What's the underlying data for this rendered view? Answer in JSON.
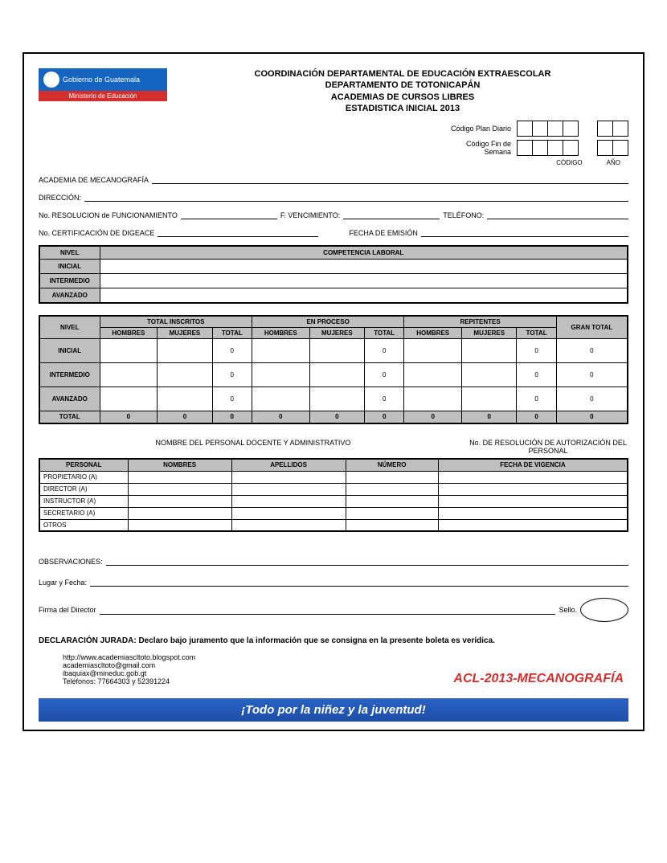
{
  "logo": {
    "org": "Gobierno de Guatemala",
    "ministry": "Ministerio de Educación"
  },
  "title": {
    "l1": "COORDINACIÓN DEPARTAMENTAL DE EDUCACIÓN EXTRAESCOLAR",
    "l2": "DEPARTAMENTO DE TOTONICAPÁN",
    "l3": "ACADEMIAS DE CURSOS LIBRES",
    "l4": "ESTADISTICA INICIAL  2013"
  },
  "codes": {
    "diario_label": "Código Plan Diario",
    "finsemana_label": "Código Fin de Semana",
    "codigo_sub": "CÓDIGO",
    "ano_sub": "AÑO"
  },
  "fields": {
    "academia": "ACADEMIA DE MECANOGRAFÍA",
    "direccion": "DIRECCIÓN:",
    "resolucion": "No. RESOLUCION de FUNCIONAMIENTO",
    "vencimiento": "F. VENCIMIENTO:",
    "telefono": "TELÉFONO:",
    "cert": "No. CERTIFICACIÓN DE DIGEACE",
    "emision": "FECHA DE EMISIÓN"
  },
  "comp": {
    "nivel": "NIVEL",
    "header": "COMPETENCIA LABORAL",
    "levels": [
      "INICIAL",
      "INTERMEDIO",
      "AVANZADO"
    ]
  },
  "stats": {
    "nivel": "NIVEL",
    "groups": [
      "TOTAL INSCRITOS",
      "EN PROCESO",
      "REPITENTES"
    ],
    "gran": "GRAN TOTAL",
    "cols": [
      "HOMBRES",
      "MUJERES",
      "TOTAL"
    ],
    "levels": [
      "INICIAL",
      "INTERMEDIO",
      "AVANZADO"
    ],
    "rows": [
      [
        "",
        "",
        "0",
        "",
        "",
        "0",
        "",
        "",
        "0",
        "0"
      ],
      [
        "",
        "",
        "0",
        "",
        "",
        "0",
        "",
        "",
        "0",
        "0"
      ],
      [
        "",
        "",
        "0",
        "",
        "",
        "0",
        "",
        "",
        "0",
        "0"
      ]
    ],
    "total_label": "TOTAL",
    "totals": [
      "0",
      "0",
      "0",
      "0",
      "0",
      "0",
      "0",
      "0",
      "0",
      "0"
    ]
  },
  "personal": {
    "hdr_left": "NOMBRE DEL PERSONAL DOCENTE Y ADMINISTRATIVO",
    "hdr_right": "No.   DE  RESOLUCIÓN DE AUTORIZACIÓN DEL PERSONAL",
    "cols": [
      "PERSONAL",
      "NOMBRES",
      "APELLIDOS",
      "NÚMERO",
      "FECHA DE VIGENCIA"
    ],
    "roles": [
      "PROPIETARIO (A)",
      "DIRECTOR (A)",
      "INSTRUCTOR (A)",
      "SECRETARIO (A)",
      "OTROS"
    ]
  },
  "obs": {
    "observaciones": "OBSERVACIONES:",
    "lugar": "Lugar y Fecha:",
    "firma": "Firma del Director",
    "sello": "Sello."
  },
  "decl": {
    "label": "DECLARACIÓN JURADA:",
    "text": " Declaro bajo juramento que la información que se consigna en la presente boleta es verídica."
  },
  "contact": {
    "url": "http://www.academiascltoto.blogspot.com",
    "email1": "academiascltoto@gmail.com",
    "email2": "ibaquiax@mineduc.gob.gt",
    "tel": "Teléfonos: 77664303 y 52391224"
  },
  "acl": "ACL-2013-MECANOGRAFÍA",
  "footer": "¡Todo por la niñez y la juventud!",
  "colors": {
    "grey": "#bfbfbf",
    "blue": "#1565c0",
    "red": "#d32f2f",
    "banner": "#1e4fa8"
  }
}
